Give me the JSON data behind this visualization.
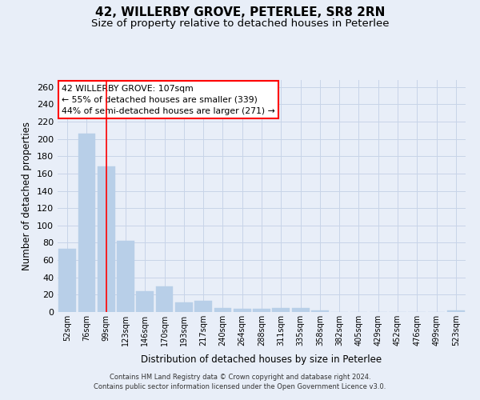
{
  "title": "42, WILLERBY GROVE, PETERLEE, SR8 2RN",
  "subtitle": "Size of property relative to detached houses in Peterlee",
  "xlabel": "Distribution of detached houses by size in Peterlee",
  "ylabel": "Number of detached properties",
  "categories": [
    "52sqm",
    "76sqm",
    "99sqm",
    "123sqm",
    "146sqm",
    "170sqm",
    "193sqm",
    "217sqm",
    "240sqm",
    "264sqm",
    "288sqm",
    "311sqm",
    "335sqm",
    "358sqm",
    "382sqm",
    "405sqm",
    "429sqm",
    "452sqm",
    "476sqm",
    "499sqm",
    "523sqm"
  ],
  "values": [
    73,
    206,
    168,
    82,
    24,
    30,
    11,
    13,
    5,
    4,
    4,
    5,
    5,
    2,
    0,
    0,
    0,
    0,
    0,
    0,
    2
  ],
  "bar_color": "#b8cfe8",
  "grid_color": "#c8d4e8",
  "vline_x": 2,
  "vline_color": "red",
  "annotation_line1": "42 WILLERBY GROVE: 107sqm",
  "annotation_line2": "← 55% of detached houses are smaller (339)",
  "annotation_line3": "44% of semi-detached houses are larger (271) →",
  "annotation_box_color": "white",
  "annotation_box_edge_color": "red",
  "footer_text": "Contains HM Land Registry data © Crown copyright and database right 2024.\nContains public sector information licensed under the Open Government Licence v3.0.",
  "ylim": [
    0,
    268
  ],
  "yticks": [
    0,
    20,
    40,
    60,
    80,
    100,
    120,
    140,
    160,
    180,
    200,
    220,
    240,
    260
  ],
  "background_color": "#e8eef8",
  "title_fontsize": 11,
  "subtitle_fontsize": 9.5,
  "axis_fontsize": 8.5,
  "tick_fontsize": 8,
  "xtick_fontsize": 7
}
